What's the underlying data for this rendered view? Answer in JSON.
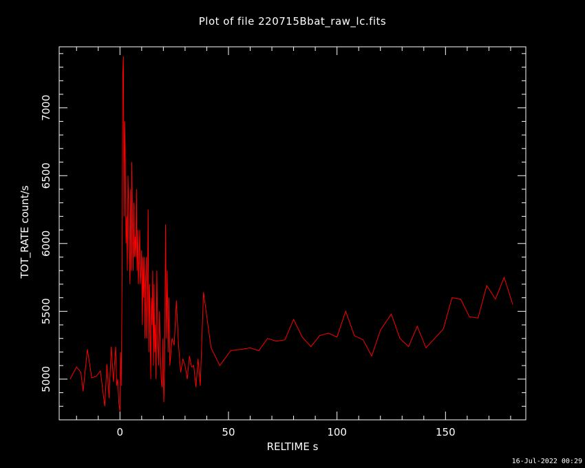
{
  "chart_data": {
    "type": "line",
    "title": "Plot of file 220715Bbat_raw_lc.fits",
    "xlabel": "RELTIME  s",
    "ylabel": "TOT_RATE  count/s",
    "xlim": [
      -28,
      187
    ],
    "ylim": [
      4700,
      7450
    ],
    "xticks": [
      0,
      50,
      100,
      150
    ],
    "yticks": [
      5000,
      5500,
      6000,
      6500,
      7000
    ],
    "grid": false,
    "series": [
      {
        "color": "#ff0000",
        "points": [
          [
            -23,
            5000
          ],
          [
            -20,
            5090
          ],
          [
            -18,
            5050
          ],
          [
            -17,
            4910
          ],
          [
            -15,
            5220
          ],
          [
            -13,
            5010
          ],
          [
            -11,
            5020
          ],
          [
            -9,
            5060
          ],
          [
            -7,
            4800
          ],
          [
            -6,
            5110
          ],
          [
            -5,
            4860
          ],
          [
            -4,
            5240
          ],
          [
            -3,
            4980
          ],
          [
            -2,
            5240
          ],
          [
            -1.5,
            4950
          ],
          [
            -1,
            5000
          ],
          [
            -0.5,
            4820
          ],
          [
            0,
            4760
          ],
          [
            0.3,
            5200
          ],
          [
            0.6,
            4950
          ],
          [
            1,
            5800
          ],
          [
            1.3,
            7250
          ],
          [
            1.6,
            7380
          ],
          [
            1.9,
            6200
          ],
          [
            2.2,
            6900
          ],
          [
            2.5,
            6600
          ],
          [
            2.8,
            6000
          ],
          [
            3.1,
            6200
          ],
          [
            3.4,
            5800
          ],
          [
            3.7,
            6500
          ],
          [
            4,
            6300
          ],
          [
            4.3,
            5950
          ],
          [
            4.6,
            5700
          ],
          [
            4.9,
            6400
          ],
          [
            5.2,
            5800
          ],
          [
            5.5,
            6600
          ],
          [
            5.8,
            6100
          ],
          [
            6.1,
            5800
          ],
          [
            6.4,
            6300
          ],
          [
            6.7,
            5900
          ],
          [
            7,
            6050
          ],
          [
            7.3,
            5900
          ],
          [
            7.6,
            6400
          ],
          [
            7.9,
            5800
          ],
          [
            8.2,
            6100
          ],
          [
            8.5,
            5700
          ],
          [
            8.8,
            5900
          ],
          [
            9.1,
            6100
          ],
          [
            9.4,
            5700
          ],
          [
            9.7,
            5800
          ],
          [
            10,
            5950
          ],
          [
            10.3,
            5400
          ],
          [
            10.6,
            5900
          ],
          [
            10.9,
            5600
          ],
          [
            11.2,
            5900
          ],
          [
            11.5,
            5300
          ],
          [
            11.8,
            5700
          ],
          [
            12.1,
            5900
          ],
          [
            12.4,
            5300
          ],
          [
            12.7,
            5600
          ],
          [
            13,
            6250
          ],
          [
            13.3,
            5200
          ],
          [
            13.6,
            5700
          ],
          [
            13.9,
            5400
          ],
          [
            14.2,
            5000
          ],
          [
            14.5,
            5600
          ],
          [
            14.8,
            5400
          ],
          [
            15.1,
            5800
          ],
          [
            15.4,
            5100
          ],
          [
            15.7,
            5700
          ],
          [
            16,
            5200
          ],
          [
            16.3,
            5400
          ],
          [
            16.6,
            5000
          ],
          [
            17,
            5800
          ],
          [
            17.4,
            5300
          ],
          [
            17.8,
            5100
          ],
          [
            18.2,
            5500
          ],
          [
            18.6,
            5200
          ],
          [
            19,
            5000
          ],
          [
            19.4,
            4940
          ],
          [
            19.8,
            5300
          ],
          [
            20.2,
            4830
          ],
          [
            20.6,
            5100
          ],
          [
            21,
            6140
          ],
          [
            21.4,
            5300
          ],
          [
            21.8,
            5800
          ],
          [
            22.2,
            5200
          ],
          [
            22.6,
            5600
          ],
          [
            23,
            5100
          ],
          [
            24,
            5300
          ],
          [
            25,
            5250
          ],
          [
            26,
            5580
          ],
          [
            27,
            5250
          ],
          [
            28,
            5050
          ],
          [
            29,
            5150
          ],
          [
            30,
            5100
          ],
          [
            31,
            5000
          ],
          [
            32,
            5170
          ],
          [
            33,
            5090
          ],
          [
            34,
            5100
          ],
          [
            35,
            4940
          ],
          [
            36,
            5150
          ],
          [
            37,
            4950
          ],
          [
            38.5,
            5640
          ],
          [
            42,
            5230
          ],
          [
            46,
            5100
          ],
          [
            51,
            5210
          ],
          [
            56,
            5220
          ],
          [
            60,
            5230
          ],
          [
            64,
            5210
          ],
          [
            68,
            5300
          ],
          [
            72,
            5280
          ],
          [
            76,
            5290
          ],
          [
            80,
            5440
          ],
          [
            84,
            5310
          ],
          [
            88,
            5240
          ],
          [
            92,
            5320
          ],
          [
            96,
            5340
          ],
          [
            100,
            5310
          ],
          [
            104,
            5500
          ],
          [
            108,
            5320
          ],
          [
            112,
            5290
          ],
          [
            116,
            5170
          ],
          [
            120,
            5360
          ],
          [
            125,
            5480
          ],
          [
            129,
            5300
          ],
          [
            133,
            5240
          ],
          [
            137,
            5390
          ],
          [
            141,
            5230
          ],
          [
            145,
            5300
          ],
          [
            149,
            5370
          ],
          [
            153,
            5600
          ],
          [
            157,
            5590
          ],
          [
            161,
            5460
          ],
          [
            165,
            5450
          ],
          [
            169,
            5690
          ],
          [
            173,
            5590
          ],
          [
            177,
            5750
          ],
          [
            181,
            5550
          ]
        ]
      }
    ]
  },
  "footer": {
    "timestamp": "16-Jul-2022 00:29"
  },
  "colors": {
    "background": "#000000",
    "axes": "#ffffff",
    "series": "#ff0000"
  }
}
